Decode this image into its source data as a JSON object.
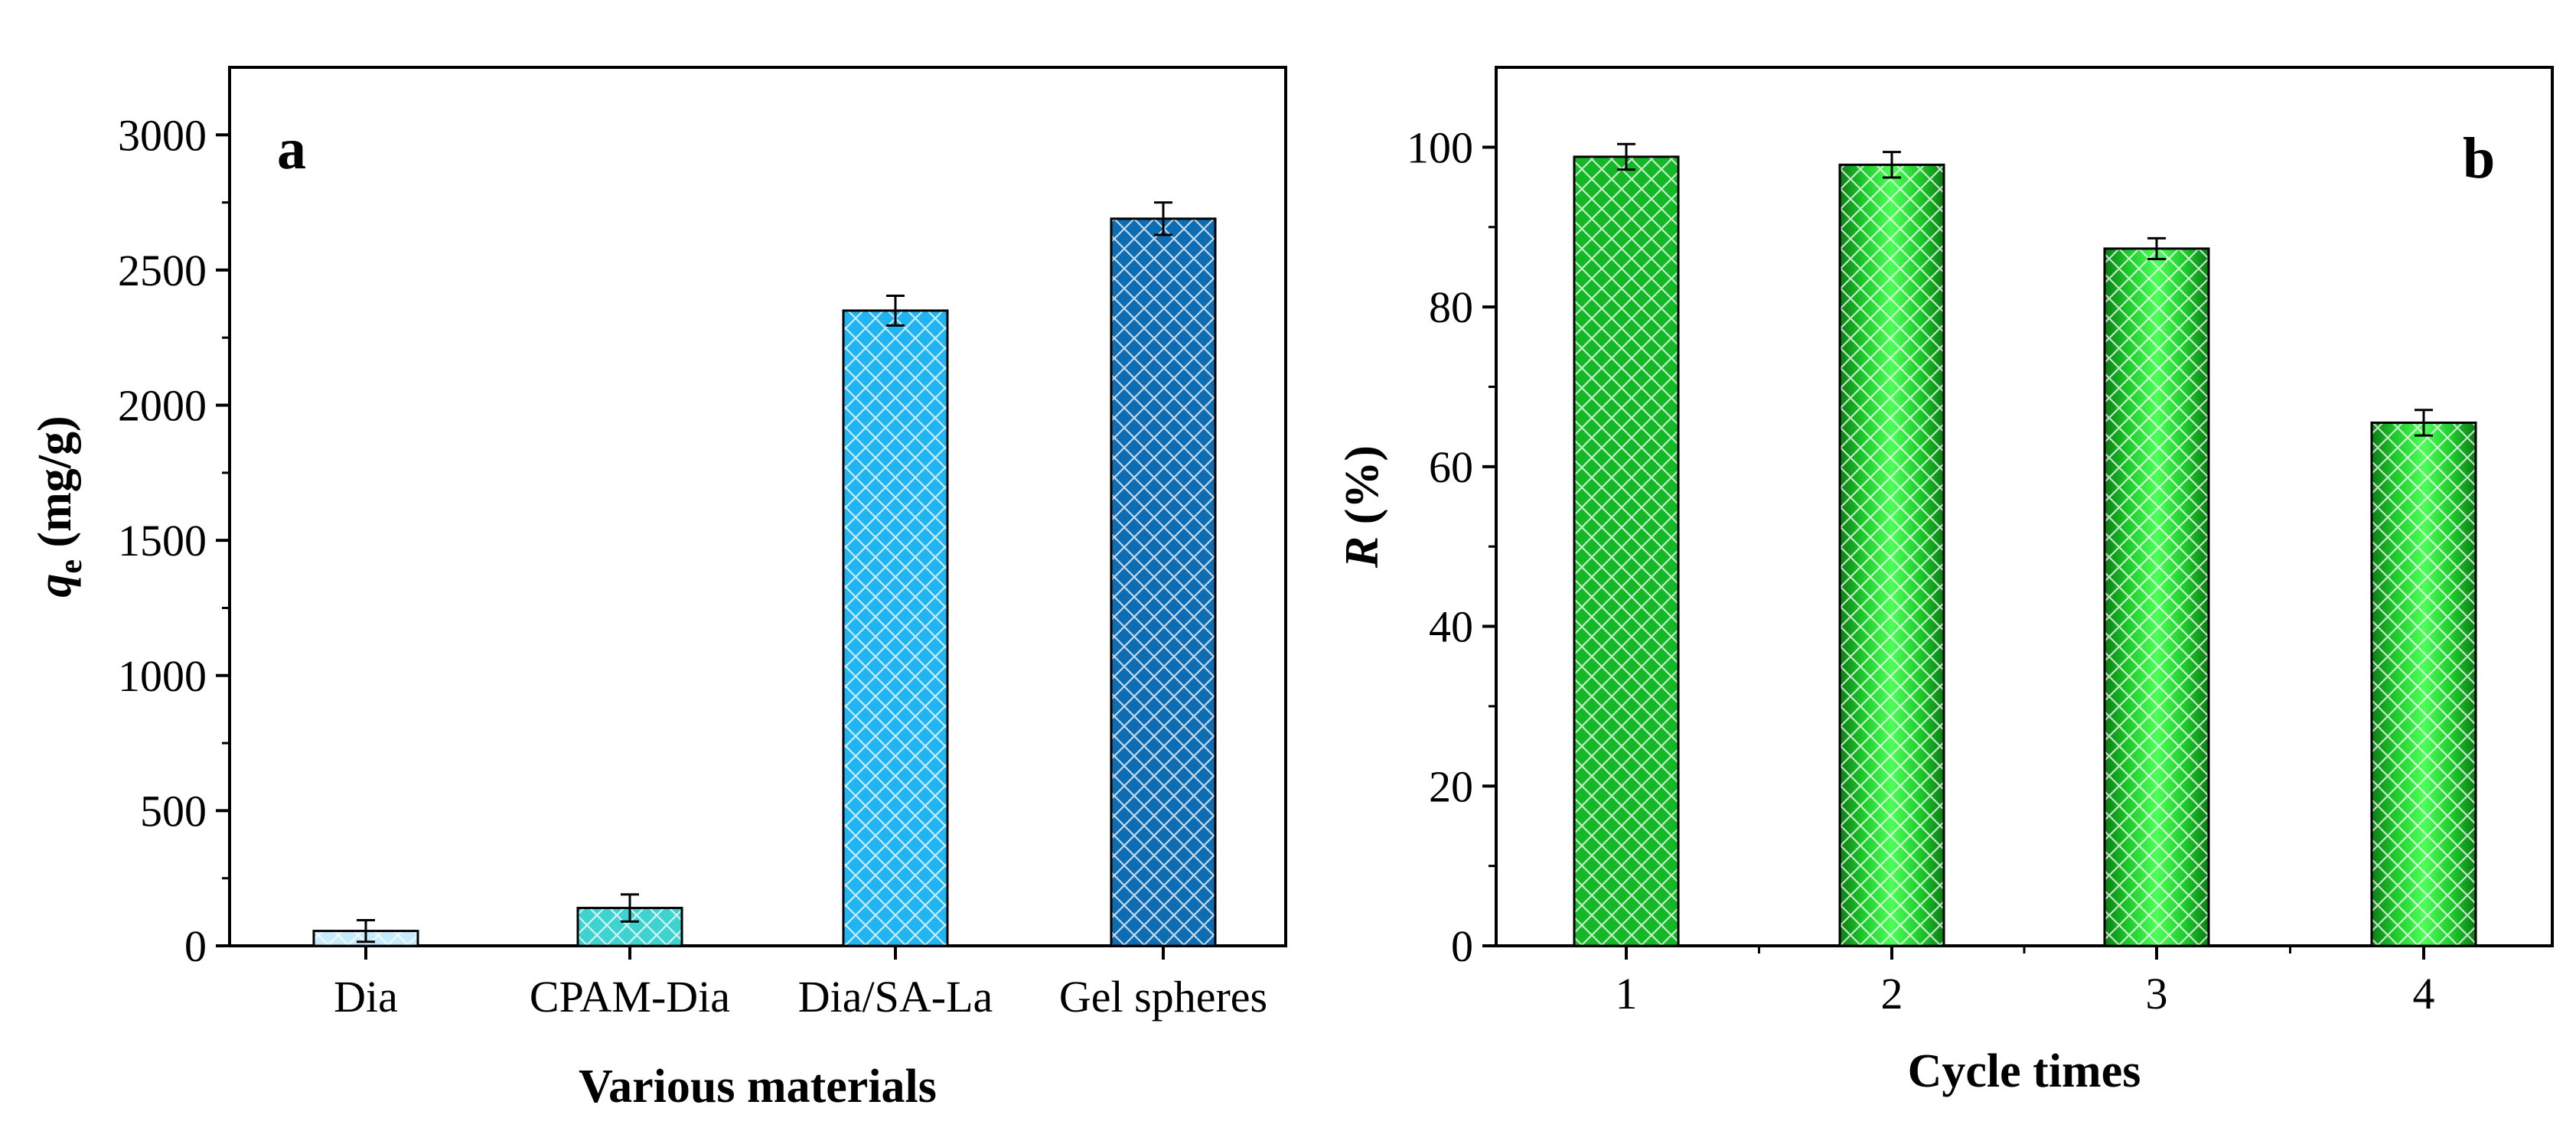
{
  "chart_data": [
    {
      "type": "bar",
      "panel_label": "a",
      "title": "",
      "xlabel": "Various materials",
      "ylabel": {
        "symbol": "q",
        "subscript": "e",
        "unit": "(mg/g)"
      },
      "categories": [
        "Dia",
        "CPAM-Dia",
        "Dia/SA-La",
        "Gel spheres"
      ],
      "values": [
        55,
        140,
        2350,
        2690
      ],
      "errors": [
        40,
        50,
        55,
        60
      ],
      "colors": [
        "#c6ecfb",
        "#3fd3d0",
        "#20b4f2",
        "#0e6cb2"
      ],
      "ylim": [
        0,
        3250
      ],
      "yticks": [
        0,
        500,
        1000,
        1500,
        2000,
        2500,
        3000
      ],
      "yticklabels": [
        "0",
        "500",
        "1000",
        "1500",
        "2000",
        "2500",
        "3000"
      ],
      "grid": false
    },
    {
      "type": "bar",
      "panel_label": "b",
      "title": "",
      "xlabel": "Cycle times",
      "ylabel": {
        "symbol": "R",
        "subscript": "",
        "unit": "(%)"
      },
      "categories": [
        "1",
        "2",
        "3",
        "4"
      ],
      "values": [
        98.8,
        97.8,
        87.3,
        65.5
      ],
      "errors": [
        1.6,
        1.6,
        1.3,
        1.6
      ],
      "colors": [
        "#14b826",
        "#2ee33c",
        "#2ee33c",
        "#2ee33c"
      ],
      "ylim": [
        0,
        110
      ],
      "yticks": [
        0,
        20,
        40,
        60,
        80,
        100
      ],
      "yticklabels": [
        "0",
        "20",
        "40",
        "60",
        "80",
        "100"
      ],
      "grid": false
    }
  ]
}
